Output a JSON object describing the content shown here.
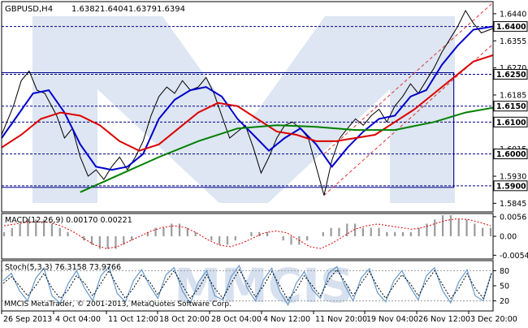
{
  "chart_data": {
    "type": "line",
    "header": {
      "symbol": "GBPUSD,H4",
      "values": [
        "1.6382",
        "1.6404",
        "1.6379",
        "1.6394"
      ]
    },
    "x_ticks": [
      "26 Sep 2013",
      "4 Oct 04:00",
      "11 Oct 12:00",
      "18 Oct 20:00",
      "28 Oct 04:00",
      "4 Nov 12:00",
      "11 Nov 20:00",
      "19 Nov 04:00",
      "26 Nov 12:00",
      "3 Dec 20:00"
    ],
    "price": {
      "ylim": [
        1.5818,
        1.6478
      ],
      "y_ticks": [
        1.644,
        1.6355,
        1.627,
        1.6185,
        1.61,
        1.6015,
        1.593,
        1.5845
      ],
      "y_tick_labels": [
        "1.6440",
        "1.6355",
        "1.6270",
        "1.6185",
        "1.6100",
        "1.6015",
        "1.5930",
        "1.5845"
      ],
      "levels": [
        {
          "value": 1.64,
          "label": "1.6400"
        },
        {
          "value": 1.625,
          "label": "1.6250"
        },
        {
          "value": 1.615,
          "label": "1.6150"
        },
        {
          "value": 1.61,
          "label": "1.6100"
        },
        {
          "value": 1.6,
          "label": "1.6000"
        },
        {
          "value": 1.59,
          "label": "1.5900"
        }
      ],
      "range_box": {
        "x_start": 0,
        "x_end": 115,
        "y_high": 1.6255,
        "y_low": 1.5895
      },
      "channel": {
        "lower": [
          [
            82,
            1.587
          ],
          [
            125,
            1.6345
          ]
        ],
        "upper": [
          [
            82,
            1.6
          ],
          [
            125,
            1.6475
          ]
        ]
      },
      "series": [
        {
          "key": "close",
          "color": "#000000",
          "width": 1,
          "points": [
            [
              0,
              1.606
            ],
            [
              3,
              1.615
            ],
            [
              5,
              1.623
            ],
            [
              7,
              1.626
            ],
            [
              9,
              1.62
            ],
            [
              11,
              1.619
            ],
            [
              14,
              1.612
            ],
            [
              16,
              1.605
            ],
            [
              18,
              1.608
            ],
            [
              20,
              1.599
            ],
            [
              22,
              1.593
            ],
            [
              24,
              1.595
            ],
            [
              26,
              1.592
            ],
            [
              28,
              1.596
            ],
            [
              30,
              1.599
            ],
            [
              32,
              1.595
            ],
            [
              34,
              1.599
            ],
            [
              36,
              1.604
            ],
            [
              38,
              1.612
            ],
            [
              40,
              1.618
            ],
            [
              42,
              1.621
            ],
            [
              44,
              1.619
            ],
            [
              46,
              1.623
            ],
            [
              48,
              1.62
            ],
            [
              50,
              1.621
            ],
            [
              52,
              1.624
            ],
            [
              54,
              1.619
            ],
            [
              56,
              1.612
            ],
            [
              58,
              1.605
            ],
            [
              60,
              1.607
            ],
            [
              62,
              1.609
            ],
            [
              64,
              1.602
            ],
            [
              66,
              1.594
            ],
            [
              68,
              1.599
            ],
            [
              70,
              1.605
            ],
            [
              72,
              1.609
            ],
            [
              74,
              1.61
            ],
            [
              76,
              1.608
            ],
            [
              78,
              1.605
            ],
            [
              80,
              1.596
            ],
            [
              82,
              1.587
            ],
            [
              84,
              1.598
            ],
            [
              86,
              1.605
            ],
            [
              88,
              1.608
            ],
            [
              90,
              1.611
            ],
            [
              92,
              1.609
            ],
            [
              94,
              1.612
            ],
            [
              96,
              1.614
            ],
            [
              98,
              1.61
            ],
            [
              100,
              1.615
            ],
            [
              102,
              1.618
            ],
            [
              104,
              1.622
            ],
            [
              106,
              1.619
            ],
            [
              108,
              1.623
            ],
            [
              110,
              1.627
            ],
            [
              112,
              1.632
            ],
            [
              114,
              1.636
            ],
            [
              116,
              1.64
            ],
            [
              118,
              1.645
            ],
            [
              120,
              1.641
            ],
            [
              122,
              1.638
            ],
            [
              125,
              1.6394
            ]
          ]
        },
        {
          "key": "fast_ma",
          "color": "#0000cc",
          "width": 2,
          "points": [
            [
              0,
              1.605
            ],
            [
              4,
              1.612
            ],
            [
              8,
              1.619
            ],
            [
              12,
              1.62
            ],
            [
              16,
              1.613
            ],
            [
              20,
              1.603
            ],
            [
              24,
              1.596
            ],
            [
              28,
              1.595
            ],
            [
              32,
              1.596
            ],
            [
              36,
              1.6
            ],
            [
              40,
              1.611
            ],
            [
              44,
              1.617
            ],
            [
              48,
              1.62
            ],
            [
              52,
              1.621
            ],
            [
              56,
              1.618
            ],
            [
              60,
              1.611
            ],
            [
              64,
              1.606
            ],
            [
              68,
              1.601
            ],
            [
              72,
              1.605
            ],
            [
              76,
              1.608
            ],
            [
              80,
              1.603
            ],
            [
              84,
              1.596
            ],
            [
              88,
              1.602
            ],
            [
              92,
              1.607
            ],
            [
              96,
              1.611
            ],
            [
              100,
              1.612
            ],
            [
              104,
              1.618
            ],
            [
              108,
              1.62
            ],
            [
              112,
              1.628
            ],
            [
              116,
              1.634
            ],
            [
              120,
              1.639
            ],
            [
              125,
              1.64
            ]
          ]
        },
        {
          "key": "mid_ma",
          "color": "#dd0000",
          "width": 2,
          "points": [
            [
              0,
              1.602
            ],
            [
              5,
              1.606
            ],
            [
              10,
              1.611
            ],
            [
              15,
              1.613
            ],
            [
              20,
              1.612
            ],
            [
              25,
              1.609
            ],
            [
              30,
              1.604
            ],
            [
              35,
              1.601
            ],
            [
              40,
              1.603
            ],
            [
              45,
              1.608
            ],
            [
              50,
              1.613
            ],
            [
              55,
              1.616
            ],
            [
              60,
              1.615
            ],
            [
              65,
              1.611
            ],
            [
              70,
              1.607
            ],
            [
              75,
              1.606
            ],
            [
              80,
              1.604
            ],
            [
              85,
              1.604
            ],
            [
              90,
              1.605
            ],
            [
              95,
              1.606
            ],
            [
              100,
              1.61
            ],
            [
              105,
              1.614
            ],
            [
              110,
              1.619
            ],
            [
              115,
              1.624
            ],
            [
              120,
              1.629
            ],
            [
              125,
              1.631
            ]
          ]
        },
        {
          "key": "slow_ma",
          "color": "#008000",
          "width": 2,
          "points": [
            [
              20,
              1.588
            ],
            [
              30,
              1.5935
            ],
            [
              40,
              1.599
            ],
            [
              50,
              1.604
            ],
            [
              60,
              1.608
            ],
            [
              70,
              1.609
            ],
            [
              80,
              1.6085
            ],
            [
              90,
              1.6075
            ],
            [
              100,
              1.6075
            ],
            [
              110,
              1.61
            ],
            [
              118,
              1.613
            ],
            [
              125,
              1.6145
            ]
          ]
        }
      ]
    },
    "macd": {
      "label": "MACD(12,26,9) 0.00170 0.00221",
      "ylim": [
        -0.0065,
        0.0065
      ],
      "y_ticks": [
        0.0056,
        0.0,
        -0.00542
      ],
      "y_tick_labels": [
        "0.0056",
        "0.00",
        "-0.00542"
      ],
      "histogram": [
        1,
        2,
        3,
        4,
        4,
        4,
        3,
        2,
        1,
        0,
        -1,
        -2,
        -3,
        -3,
        -3,
        -2,
        -1,
        0,
        1,
        2,
        2,
        3,
        3,
        2,
        1,
        0,
        -1,
        -2,
        -2,
        -1,
        0,
        1,
        1,
        1,
        0,
        -1,
        -2,
        -2,
        -1,
        0,
        1,
        2,
        2,
        3,
        3,
        2,
        2,
        2,
        1,
        1,
        1,
        1,
        2,
        3,
        4,
        5,
        5,
        4,
        4,
        3,
        2,
        2
      ],
      "histogram_scale": 0.0012,
      "signal": [
        0.003,
        0.0035,
        0.004,
        0.0042,
        0.004,
        0.003,
        0.0015,
        -0.0005,
        -0.0025,
        -0.0035,
        -0.003,
        -0.0015,
        0.0,
        0.0015,
        0.0025,
        0.003,
        0.0025,
        0.001,
        -0.001,
        -0.0025,
        -0.003,
        -0.002,
        -0.0005,
        0.001,
        0.0015,
        0.001,
        -0.001,
        -0.003,
        -0.0035,
        -0.002,
        0.0,
        0.002,
        0.003,
        0.0035,
        0.003,
        0.0025,
        0.002,
        0.0025,
        0.0035,
        0.0045,
        0.005,
        0.0048,
        0.004,
        0.003
      ]
    },
    "stoch": {
      "label": "Stoch(5,3,3) 76.3158 73.9766",
      "ylim": [
        0,
        100
      ],
      "y_ticks": [
        80,
        50,
        20
      ],
      "y_tick_labels": [
        "80",
        "50",
        "20"
      ],
      "main": [
        60,
        75,
        40,
        20,
        65,
        85,
        30,
        15,
        55,
        80,
        45,
        20,
        70,
        88,
        35,
        18,
        60,
        82,
        50,
        25,
        72,
        86,
        40,
        15,
        58,
        80,
        30,
        22,
        68,
        90,
        45,
        20,
        62,
        85,
        38,
        12,
        55,
        78,
        42,
        25,
        75,
        88,
        50,
        20,
        66,
        84,
        36,
        18,
        60,
        80,
        48,
        22,
        70,
        86,
        40,
        16,
        58,
        82,
        30,
        20,
        76
      ],
      "signal": [
        55,
        68,
        50,
        30,
        50,
        75,
        45,
        25,
        42,
        70,
        55,
        30,
        55,
        80,
        50,
        25,
        45,
        72,
        58,
        32,
        58,
        80,
        52,
        25,
        45,
        72,
        45,
        25,
        55,
        82,
        55,
        28,
        50,
        78,
        50,
        22,
        42,
        70,
        50,
        30,
        62,
        82,
        58,
        30,
        55,
        78,
        48,
        25,
        50,
        72,
        55,
        30,
        58,
        80,
        52,
        25,
        45,
        74,
        45,
        25,
        74
      ]
    },
    "watermark": "MMCIS",
    "copyright": "MMCIS MetaTrader, © 2001-2013, MetaQuotes Software Corp.",
    "colors": {
      "background": "#ffffff",
      "grid_dashed": "#00008b",
      "channel": "#dd3333",
      "macd_histogram": "#9a9a9a",
      "macd_signal": "#dd0000",
      "stoch_main": "#6699cc",
      "stoch_signal": "#000000",
      "watermark": "#dde6f2",
      "frame": "#000000"
    }
  }
}
